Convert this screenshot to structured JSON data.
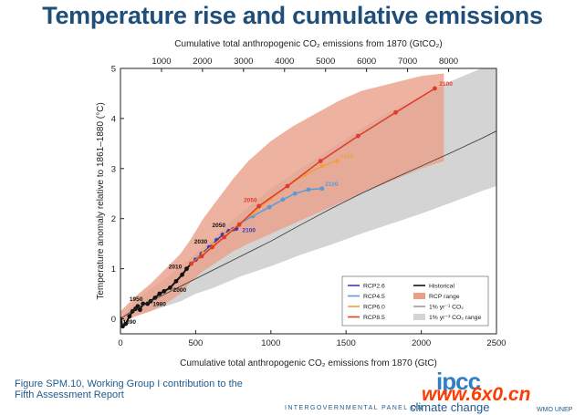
{
  "slide": {
    "title": "Temperature rise and cumulative emissions",
    "caption_line1": "Figure SPM.10, Working Group I contribution to the",
    "caption_line2": "Fifth Assessment Report",
    "footer_org": "INTERGOVERNMENTAL PANEL ON",
    "footer_cc": "climate change",
    "logo_text": "ipcc",
    "watermark": "www.6x0.cn",
    "partner_logos": "WMO UNEP"
  },
  "colors": {
    "rcp26": "#3b3bb3",
    "rcp45": "#5b9bd5",
    "rcp60": "#f0a040",
    "rcp85": "#e03a2a",
    "historical": "#111111",
    "rcp_range": "#e9a088",
    "one_pct": "#333333",
    "one_pct_range": "#d4d4d4"
  },
  "chart_data": {
    "type": "line",
    "title": "",
    "xlabel": "Cumulative total anthropogenic CO₂ emissions from 1870 (GtC)",
    "ylabel": "Temperature anomaly relative to 1861–1880 (°C)",
    "x2label": "Cumulative total anthropogenic CO₂ emissions from 1870 (GtCO₂)",
    "xlim": [
      0,
      2500
    ],
    "ylim": [
      -0.3,
      5
    ],
    "xticks": [
      0,
      500,
      1000,
      1500,
      2000,
      2500
    ],
    "yticks": [
      0,
      1,
      2,
      3,
      4,
      5
    ],
    "x2ticks": [
      1000,
      2000,
      3000,
      4000,
      5000,
      6000,
      7000,
      8000
    ],
    "x2_per_x": 3.667,
    "grid": false,
    "legend_position": "lower-right",
    "legend": [
      {
        "label": "RCP2.6",
        "kind": "line",
        "color_key": "rcp26"
      },
      {
        "label": "RCP4.5",
        "kind": "line",
        "color_key": "rcp45"
      },
      {
        "label": "RCP6.0",
        "kind": "line",
        "color_key": "rcp60"
      },
      {
        "label": "RCP8.5",
        "kind": "line",
        "color_key": "rcp85"
      },
      {
        "label": "Historical",
        "kind": "line",
        "color_key": "historical"
      },
      {
        "label": "RCP range",
        "kind": "patch",
        "color_key": "rcp_range"
      },
      {
        "label": "1% yr⁻¹ CO₂",
        "kind": "thin",
        "color_key": "one_pct"
      },
      {
        "label": "1% yr⁻¹ CO₂ range",
        "kind": "patch",
        "color_key": "one_pct_range"
      }
    ],
    "series": [
      {
        "name": "Historical",
        "color_key": "historical",
        "width": 2,
        "x": [
          0,
          15,
          35,
          60,
          80,
          100,
          115,
          130,
          150,
          180,
          200,
          230,
          260,
          290,
          330,
          370,
          410,
          440,
          470
        ],
        "y": [
          0.0,
          -0.15,
          -0.1,
          0.05,
          0.15,
          0.2,
          0.25,
          0.18,
          0.3,
          0.3,
          0.35,
          0.42,
          0.5,
          0.55,
          0.62,
          0.75,
          0.88,
          1.0,
          1.1
        ]
      },
      {
        "name": "RCP2.6",
        "color_key": "rcp26",
        "width": 1.5,
        "x": [
          470,
          500,
          540,
          590,
          640,
          680,
          720,
          750,
          770
        ],
        "y": [
          1.1,
          1.18,
          1.3,
          1.43,
          1.57,
          1.68,
          1.75,
          1.79,
          1.8
        ]
      },
      {
        "name": "RCP4.5",
        "color_key": "rcp45",
        "width": 1.5,
        "x": [
          470,
          550,
          620,
          700,
          790,
          880,
          990,
          1080,
          1160,
          1250,
          1340
        ],
        "y": [
          1.1,
          1.3,
          1.48,
          1.68,
          1.9,
          2.05,
          2.23,
          2.38,
          2.5,
          2.58,
          2.6
        ]
      },
      {
        "name": "RCP6.0",
        "color_key": "rcp60",
        "width": 1.5,
        "x": [
          470,
          550,
          620,
          700,
          790,
          880,
          1000,
          1110,
          1230,
          1340,
          1440
        ],
        "y": [
          1.1,
          1.3,
          1.48,
          1.68,
          1.9,
          2.1,
          2.4,
          2.65,
          2.88,
          3.05,
          3.15
        ]
      },
      {
        "name": "RCP8.5",
        "color_key": "rcp85",
        "width": 1.5,
        "x": [
          470,
          540,
          610,
          690,
          790,
          920,
          1110,
          1330,
          1580,
          1830,
          2090
        ],
        "y": [
          1.1,
          1.25,
          1.43,
          1.63,
          1.88,
          2.25,
          2.65,
          3.15,
          3.65,
          4.12,
          4.6
        ]
      },
      {
        "name": "1% yr⁻¹ CO₂",
        "color_key": "one_pct",
        "width": 0.8,
        "x": [
          0,
          100,
          200,
          300,
          400,
          500,
          600,
          700,
          800,
          900,
          1000,
          1200,
          1400,
          1600,
          1800,
          2000,
          2200,
          2400,
          2500
        ],
        "y": [
          0,
          0.2,
          0.35,
          0.5,
          0.65,
          0.8,
          0.95,
          1.1,
          1.25,
          1.4,
          1.55,
          1.88,
          2.2,
          2.5,
          2.78,
          3.05,
          3.32,
          3.6,
          3.75
        ]
      }
    ],
    "bands": [
      {
        "name": "1% yr⁻¹ CO₂ range",
        "color_key": "one_pct_range",
        "opacity": 1,
        "x": [
          0,
          100,
          200,
          300,
          400,
          500,
          600,
          700,
          800,
          1000,
          1200,
          1400,
          1600,
          1800,
          2000,
          2200,
          2400,
          2500
        ],
        "lower": [
          0,
          0.05,
          0.15,
          0.25,
          0.35,
          0.5,
          0.6,
          0.72,
          0.85,
          1.05,
          1.28,
          1.48,
          1.7,
          1.9,
          2.1,
          2.32,
          2.55,
          2.65
        ],
        "upper": [
          0,
          0.35,
          0.6,
          0.8,
          1.05,
          1.3,
          1.55,
          1.85,
          2.1,
          2.6,
          3.0,
          3.4,
          3.8,
          4.15,
          4.45,
          4.75,
          5,
          5
        ]
      },
      {
        "name": "RCP range",
        "color_key": "rcp_range",
        "opacity": 0.8,
        "x": [
          0,
          100,
          200,
          300,
          400,
          470,
          550,
          650,
          750,
          850,
          1000,
          1150,
          1300,
          1450,
          1600,
          1800,
          2000,
          2150
        ],
        "lower": [
          -0.1,
          0.05,
          0.15,
          0.3,
          0.5,
          0.75,
          0.95,
          1.15,
          1.35,
          1.5,
          1.7,
          1.9,
          2.1,
          2.3,
          2.5,
          2.75,
          3.0,
          3.15
        ],
        "upper": [
          0.15,
          0.45,
          0.7,
          1.0,
          1.3,
          1.6,
          2.0,
          2.4,
          2.8,
          3.15,
          3.55,
          3.85,
          4.1,
          4.35,
          4.55,
          4.7,
          4.85,
          4.9
        ]
      }
    ],
    "point_labels": [
      {
        "text": "1890",
        "x": 15,
        "y": -0.15,
        "color_key": "historical"
      },
      {
        "text": "1950",
        "x": 60,
        "y": 0.3,
        "color_key": "historical"
      },
      {
        "text": "1980",
        "x": 215,
        "y": 0.2,
        "color_key": "historical"
      },
      {
        "text": "2000",
        "x": 350,
        "y": 0.48,
        "color_key": "historical"
      },
      {
        "text": "2010",
        "x": 320,
        "y": 0.95,
        "color_key": "historical"
      },
      {
        "text": "2030",
        "x": 490,
        "y": 1.45,
        "color_key": "historical"
      },
      {
        "text": "2050",
        "x": 610,
        "y": 1.78,
        "color_key": "historical"
      },
      {
        "text": "2100",
        "x": 810,
        "y": 1.68,
        "color_key": "rcp26"
      },
      {
        "text": "2050",
        "x": 820,
        "y": 2.28,
        "color_key": "rcp85"
      },
      {
        "text": "2100",
        "x": 2120,
        "y": 4.6,
        "color_key": "rcp85"
      },
      {
        "text": "2100",
        "x": 1460,
        "y": 3.15,
        "color_key": "rcp60"
      },
      {
        "text": "2100",
        "x": 1360,
        "y": 2.6,
        "color_key": "rcp45"
      }
    ]
  }
}
